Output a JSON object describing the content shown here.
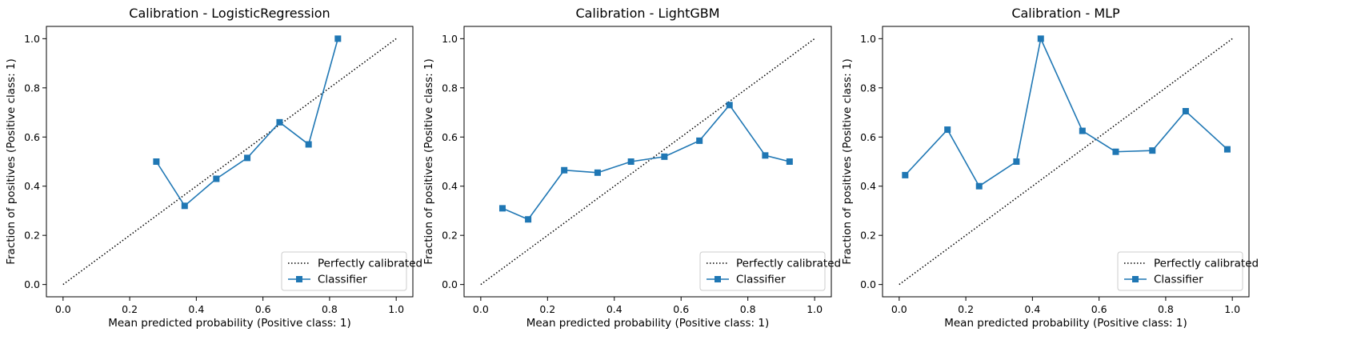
{
  "chart_data": [
    {
      "type": "line",
      "title": "Calibration - LogisticRegression",
      "xlabel": "Mean predicted probability (Positive class: 1)",
      "ylabel": "Fraction of positives (Positive class: 1)",
      "xlim": [
        -0.05,
        1.05
      ],
      "ylim": [
        -0.05,
        1.05
      ],
      "xticks": [
        "0.0",
        "0.2",
        "0.4",
        "0.6",
        "0.8",
        "1.0"
      ],
      "yticks": [
        "0.0",
        "0.2",
        "0.4",
        "0.6",
        "0.8",
        "1.0"
      ],
      "legend_position": "lower-right",
      "series": [
        {
          "name": "Perfectly calibrated",
          "style": "dotted",
          "color": "#000000",
          "x": [
            0,
            1
          ],
          "y": [
            0,
            1
          ]
        },
        {
          "name": "Classifier",
          "style": "solid-square",
          "color": "#1f77b4",
          "x": [
            0.28,
            0.365,
            0.46,
            0.553,
            0.65,
            0.737,
            0.825
          ],
          "y": [
            0.5,
            0.32,
            0.43,
            0.515,
            0.66,
            0.57,
            1.0
          ]
        }
      ]
    },
    {
      "type": "line",
      "title": "Calibration - LightGBM",
      "xlabel": "Mean predicted probability (Positive class: 1)",
      "ylabel": "Fraction of positives (Positive class: 1)",
      "xlim": [
        -0.05,
        1.05
      ],
      "ylim": [
        -0.05,
        1.05
      ],
      "xticks": [
        "0.0",
        "0.2",
        "0.4",
        "0.6",
        "0.8",
        "1.0"
      ],
      "yticks": [
        "0.0",
        "0.2",
        "0.4",
        "0.6",
        "0.8",
        "1.0"
      ],
      "legend_position": "lower-right",
      "series": [
        {
          "name": "Perfectly calibrated",
          "style": "dotted",
          "color": "#000000",
          "x": [
            0,
            1
          ],
          "y": [
            0,
            1
          ]
        },
        {
          "name": "Classifier",
          "style": "solid-square",
          "color": "#1f77b4",
          "x": [
            0.065,
            0.142,
            0.25,
            0.35,
            0.45,
            0.55,
            0.655,
            0.745,
            0.852,
            0.925
          ],
          "y": [
            0.31,
            0.265,
            0.465,
            0.455,
            0.5,
            0.52,
            0.585,
            0.73,
            0.525,
            0.5
          ]
        }
      ]
    },
    {
      "type": "line",
      "title": "Calibration - MLP",
      "xlabel": "Mean predicted probability (Positive class: 1)",
      "ylabel": "Fraction of positives (Positive class: 1)",
      "xlim": [
        -0.05,
        1.05
      ],
      "ylim": [
        -0.05,
        1.05
      ],
      "xticks": [
        "0.0",
        "0.2",
        "0.4",
        "0.6",
        "0.8",
        "1.0"
      ],
      "yticks": [
        "0.0",
        "0.2",
        "0.4",
        "0.6",
        "0.8",
        "1.0"
      ],
      "legend_position": "lower-right",
      "series": [
        {
          "name": "Perfectly calibrated",
          "style": "dotted",
          "color": "#000000",
          "x": [
            0,
            1
          ],
          "y": [
            0,
            1
          ]
        },
        {
          "name": "Classifier",
          "style": "solid-square",
          "color": "#1f77b4",
          "x": [
            0.018,
            0.145,
            0.24,
            0.352,
            0.425,
            0.55,
            0.65,
            0.76,
            0.86,
            0.985
          ],
          "y": [
            0.445,
            0.63,
            0.4,
            0.5,
            1.0,
            0.625,
            0.54,
            0.545,
            0.705,
            0.55
          ]
        }
      ]
    }
  ]
}
